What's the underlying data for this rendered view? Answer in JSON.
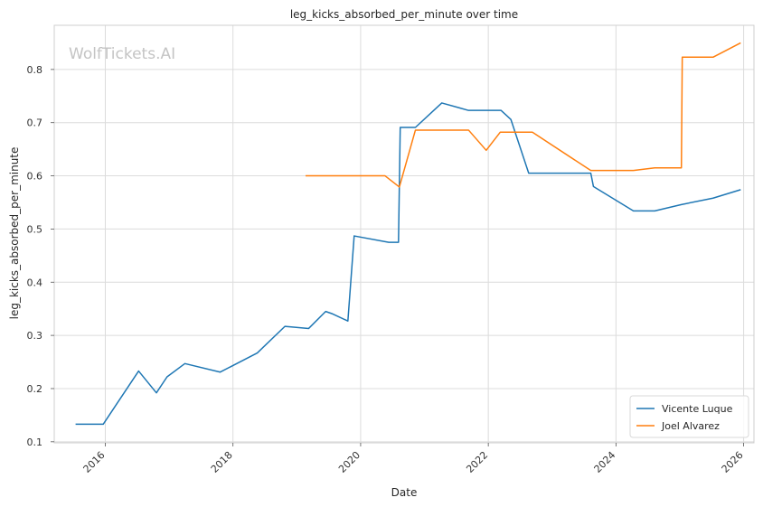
{
  "chart_data": {
    "type": "line",
    "title": "leg_kicks_absorbed_per_minute over time",
    "xlabel": "Date",
    "ylabel": "leg_kicks_absorbed_per_minute",
    "watermark": "WolfTickets.AI",
    "x_ticks": [
      "2016",
      "2018",
      "2020",
      "2022",
      "2024",
      "2026"
    ],
    "y_ticks": [
      "0.1",
      "0.2",
      "0.3",
      "0.4",
      "0.5",
      "0.6",
      "0.7",
      "0.8"
    ],
    "xlim": [
      "2015-03-15",
      "2026-03-01"
    ],
    "ylim": [
      0.098,
      0.883
    ],
    "grid": true,
    "legend_position": "lower-right",
    "series": [
      {
        "name": "Vicente Luque",
        "color": "#1f77b4",
        "points": [
          [
            "2015-07-15",
            0.133
          ],
          [
            "2015-12-20",
            0.133
          ],
          [
            "2016-07-10",
            0.233
          ],
          [
            "2016-10-20",
            0.192
          ],
          [
            "2016-12-20",
            0.222
          ],
          [
            "2017-04-01",
            0.247
          ],
          [
            "2017-10-20",
            0.231
          ],
          [
            "2018-05-20",
            0.267
          ],
          [
            "2018-10-25",
            0.317
          ],
          [
            "2019-03-10",
            0.313
          ],
          [
            "2019-06-15",
            0.345
          ],
          [
            "2019-07-20",
            0.341
          ],
          [
            "2019-10-20",
            0.327
          ],
          [
            "2019-11-25",
            0.487
          ],
          [
            "2020-06-10",
            0.475
          ],
          [
            "2020-08-05",
            0.475
          ],
          [
            "2020-08-15",
            0.691
          ],
          [
            "2020-11-10",
            0.691
          ],
          [
            "2021-04-10",
            0.737
          ],
          [
            "2021-09-10",
            0.723
          ],
          [
            "2022-03-15",
            0.723
          ],
          [
            "2022-05-10",
            0.706
          ],
          [
            "2022-08-20",
            0.605
          ],
          [
            "2023-08-10",
            0.605
          ],
          [
            "2023-08-25",
            0.58
          ],
          [
            "2024-04-10",
            0.534
          ],
          [
            "2024-08-10",
            0.534
          ],
          [
            "2025-01-10",
            0.546
          ],
          [
            "2025-07-10",
            0.558
          ],
          [
            "2025-12-15",
            0.574
          ]
        ]
      },
      {
        "name": "Joel Alvarez",
        "color": "#ff7f0e",
        "points": [
          [
            "2019-02-20",
            0.6
          ],
          [
            "2020-05-20",
            0.6
          ],
          [
            "2020-08-10",
            0.579
          ],
          [
            "2020-11-10",
            0.686
          ],
          [
            "2021-09-10",
            0.686
          ],
          [
            "2021-12-20",
            0.648
          ],
          [
            "2022-03-10",
            0.682
          ],
          [
            "2022-09-10",
            0.682
          ],
          [
            "2023-08-10",
            0.61
          ],
          [
            "2024-04-10",
            0.61
          ],
          [
            "2024-08-10",
            0.615
          ],
          [
            "2025-01-10",
            0.615
          ],
          [
            "2025-01-15",
            0.823
          ],
          [
            "2025-07-10",
            0.823
          ],
          [
            "2025-12-15",
            0.85
          ]
        ]
      }
    ]
  }
}
